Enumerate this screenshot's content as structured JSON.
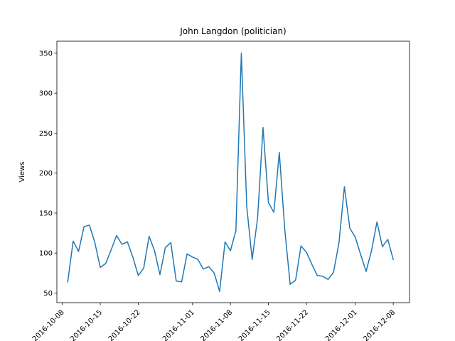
{
  "chart_data": {
    "type": "line",
    "title": "John Langdon (politician)",
    "xlabel": "",
    "ylabel": "Views",
    "x_tick_labels": [
      "2016-10-08",
      "2016-10-15",
      "2016-10-22",
      "2016-11-01",
      "2016-11-08",
      "2016-11-15",
      "2016-11-22",
      "2016-12-01",
      "2016-12-08"
    ],
    "y_ticks": [
      50,
      100,
      150,
      200,
      250,
      300,
      350
    ],
    "ylim": [
      38,
      365
    ],
    "xlim": [
      "2016-10-07",
      "2016-12-11"
    ],
    "grid": false,
    "color": "#1f77b4",
    "series": [
      {
        "x": [
          "2016-10-09",
          "2016-10-10",
          "2016-10-11",
          "2016-10-12",
          "2016-10-13",
          "2016-10-14",
          "2016-10-15",
          "2016-10-16",
          "2016-10-17",
          "2016-10-18",
          "2016-10-19",
          "2016-10-20",
          "2016-10-21",
          "2016-10-22",
          "2016-10-23",
          "2016-10-24",
          "2016-10-25",
          "2016-10-26",
          "2016-10-27",
          "2016-10-28",
          "2016-10-29",
          "2016-10-30",
          "2016-10-31",
          "2016-11-01",
          "2016-11-02",
          "2016-11-03",
          "2016-11-04",
          "2016-11-05",
          "2016-11-06",
          "2016-11-07",
          "2016-11-08",
          "2016-11-09",
          "2016-11-10",
          "2016-11-11",
          "2016-11-12",
          "2016-11-13",
          "2016-11-14",
          "2016-11-15",
          "2016-11-16",
          "2016-11-17",
          "2016-11-18",
          "2016-11-19",
          "2016-11-20",
          "2016-11-21",
          "2016-11-22",
          "2016-11-23",
          "2016-11-24",
          "2016-11-25",
          "2016-11-26",
          "2016-11-27",
          "2016-11-28",
          "2016-11-29",
          "2016-11-30",
          "2016-12-01",
          "2016-12-02",
          "2016-12-03",
          "2016-12-04",
          "2016-12-05",
          "2016-12-06",
          "2016-12-07",
          "2016-12-08"
        ],
        "values": [
          64,
          115,
          102,
          133,
          135,
          113,
          82,
          87,
          104,
          122,
          111,
          114,
          95,
          72,
          81,
          121,
          103,
          73,
          107,
          113,
          65,
          64,
          99,
          95,
          92,
          80,
          83,
          75,
          52,
          114,
          103,
          128,
          350,
          158,
          92,
          144,
          257,
          163,
          151,
          226,
          130,
          61,
          66,
          109,
          101,
          86,
          72,
          71,
          67,
          76,
          113,
          183,
          131,
          120,
          98,
          77,
          103,
          139,
          108,
          117,
          92
        ]
      }
    ]
  }
}
